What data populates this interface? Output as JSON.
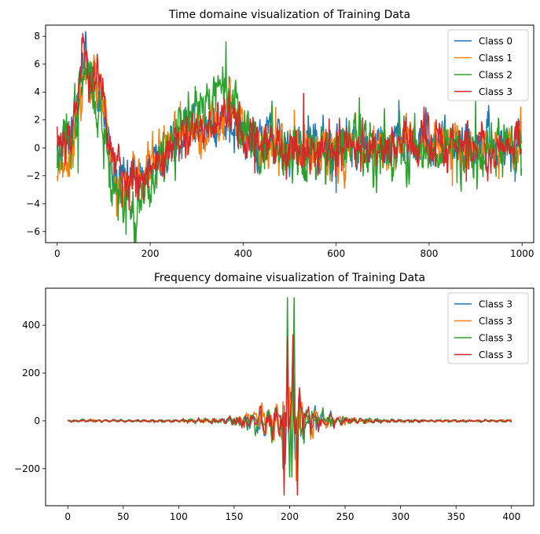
{
  "chart_data": [
    {
      "type": "line",
      "title": "Time domaine visualization of Training Data",
      "xlabel": "",
      "ylabel": "",
      "xlim": [
        -25,
        1025
      ],
      "ylim": [
        -6.8,
        8.8
      ],
      "xticks": [
        0,
        200,
        400,
        600,
        800,
        1000
      ],
      "yticks": [
        -6,
        -4,
        -2,
        0,
        2,
        4,
        6,
        8
      ],
      "xtick_labels": [
        "0",
        "200",
        "400",
        "600",
        "800",
        "1000"
      ],
      "ytick_labels": [
        "−6",
        "−4",
        "−2",
        "0",
        "2",
        "4",
        "6",
        "8"
      ],
      "legend_position": "top-right",
      "num_points": 1000,
      "series": [
        {
          "name": "Class 0",
          "color": "#1f77b4",
          "seed": 11,
          "noise": 1.0,
          "anchors": [
            [
              0,
              0
            ],
            [
              30,
              1
            ],
            [
              50,
              4.5
            ],
            [
              60,
              6.2
            ],
            [
              80,
              4.8
            ],
            [
              100,
              2.5
            ],
            [
              120,
              -1.5
            ],
            [
              150,
              -2.5
            ],
            [
              200,
              -1.5
            ],
            [
              250,
              0
            ],
            [
              300,
              1.8
            ],
            [
              330,
              1.0
            ],
            [
              370,
              2.2
            ],
            [
              400,
              1.2
            ],
            [
              450,
              0.3
            ],
            [
              600,
              0.2
            ],
            [
              800,
              0.5
            ],
            [
              1000,
              0.3
            ]
          ],
          "spikes": [
            [
              55,
              6.8
            ],
            [
              370,
              5.1
            ],
            [
              540,
              2.3
            ],
            [
              600,
              -3.2
            ],
            [
              735,
              3.4
            ],
            [
              985,
              -2.4
            ]
          ]
        },
        {
          "name": "Class 1",
          "color": "#ff7f0e",
          "seed": 23,
          "noise": 1.0,
          "anchors": [
            [
              0,
              -1.2
            ],
            [
              30,
              -0.3
            ],
            [
              50,
              3.5
            ],
            [
              60,
              5.6
            ],
            [
              80,
              4.8
            ],
            [
              100,
              2.5
            ],
            [
              120,
              -2.5
            ],
            [
              140,
              -3.5
            ],
            [
              200,
              -1.2
            ],
            [
              250,
              0.5
            ],
            [
              300,
              1.5
            ],
            [
              350,
              1.8
            ],
            [
              370,
              3.5
            ],
            [
              400,
              1.5
            ],
            [
              450,
              0
            ],
            [
              600,
              -0.3
            ],
            [
              800,
              0.1
            ],
            [
              1000,
              -0.2
            ]
          ],
          "spikes": [
            [
              12,
              -2.1
            ],
            [
              128,
              -4.9
            ],
            [
              265,
              3.3
            ],
            [
              372,
              5.0
            ],
            [
              470,
              2.9
            ],
            [
              510,
              2.7
            ],
            [
              850,
              -2.7
            ],
            [
              950,
              -2.2
            ]
          ]
        },
        {
          "name": "Class 2",
          "color": "#2ca02c",
          "seed": 37,
          "noise": 1.2,
          "anchors": [
            [
              0,
              -0.5
            ],
            [
              30,
              1
            ],
            [
              50,
              4.0
            ],
            [
              60,
              5.5
            ],
            [
              80,
              3.8
            ],
            [
              100,
              1.5
            ],
            [
              120,
              -2.5
            ],
            [
              150,
              -4.0
            ],
            [
              170,
              -4.5
            ],
            [
              200,
              -2.5
            ],
            [
              250,
              0.5
            ],
            [
              300,
              2.5
            ],
            [
              330,
              3.0
            ],
            [
              360,
              4.5
            ],
            [
              400,
              1.5
            ],
            [
              450,
              0
            ],
            [
              600,
              0
            ],
            [
              800,
              0
            ],
            [
              1000,
              0
            ]
          ],
          "spikes": [
            [
              45,
              -1.8
            ],
            [
              100,
              -1.5
            ],
            [
              148,
              -6.2
            ],
            [
              340,
              4.7
            ],
            [
              363,
              7.6
            ],
            [
              650,
              3.6
            ],
            [
              720,
              -2.4
            ],
            [
              860,
              -2.5
            ],
            [
              900,
              3.4
            ]
          ]
        },
        {
          "name": "Class 3",
          "color": "#d62728",
          "seed": 53,
          "noise": 1.0,
          "anchors": [
            [
              0,
              0.5
            ],
            [
              30,
              1.2
            ],
            [
              50,
              5.0
            ],
            [
              55,
              7.0
            ],
            [
              70,
              5.5
            ],
            [
              90,
              4.5
            ],
            [
              100,
              3.5
            ],
            [
              120,
              -1.0
            ],
            [
              150,
              -2.2
            ],
            [
              200,
              -1.5
            ],
            [
              250,
              0
            ],
            [
              300,
              1.0
            ],
            [
              350,
              1.5
            ],
            [
              370,
              2.8
            ],
            [
              400,
              1.0
            ],
            [
              450,
              0
            ],
            [
              600,
              0
            ],
            [
              800,
              0.3
            ],
            [
              1000,
              0
            ]
          ],
          "spikes": [
            [
              55,
              8.2
            ],
            [
              62,
              7.0
            ],
            [
              140,
              -4.2
            ],
            [
              425,
              -1.8
            ],
            [
              530,
              3.9
            ],
            [
              880,
              -2.4
            ],
            [
              1000,
              -2.6
            ]
          ]
        }
      ]
    },
    {
      "type": "line",
      "title": "Frequency domaine visualization of Training Data",
      "xlabel": "",
      "ylabel": "",
      "xlim": [
        -20,
        420
      ],
      "ylim": [
        -355,
        555
      ],
      "xticks": [
        0,
        50,
        100,
        150,
        200,
        250,
        300,
        350,
        400
      ],
      "yticks": [
        -200,
        0,
        200,
        400
      ],
      "xtick_labels": [
        "0",
        "50",
        "100",
        "150",
        "200",
        "250",
        "300",
        "350",
        "400"
      ],
      "ytick_labels": [
        "−200",
        "0",
        "200",
        "400"
      ],
      "legend_position": "top-right",
      "num_points": 401,
      "series": [
        {
          "name": "Class 3",
          "color": "#1f77b4",
          "seed": 71,
          "scale": 0.85,
          "peaks": [
            [
              196,
              -180
            ],
            [
              198,
              360
            ],
            [
              201,
              120
            ],
            [
              203,
              340
            ],
            [
              205,
              -160
            ]
          ]
        },
        {
          "name": "Class 3",
          "color": "#ff7f0e",
          "seed": 83,
          "scale": 0.9,
          "peaks": [
            [
              195,
              -240
            ],
            [
              198,
              300
            ],
            [
              200,
              140
            ],
            [
              203,
              320
            ],
            [
              206,
              -250
            ]
          ]
        },
        {
          "name": "Class 3",
          "color": "#2ca02c",
          "seed": 97,
          "scale": 1.0,
          "peaks": [
            [
              194,
              -200
            ],
            [
              198,
              515
            ],
            [
              200,
              -235
            ],
            [
              202,
              -235
            ],
            [
              204,
              515
            ],
            [
              207,
              -220
            ]
          ]
        },
        {
          "name": "Class 3",
          "color": "#d62728",
          "seed": 109,
          "scale": 0.95,
          "peaks": [
            [
              195,
              -310
            ],
            [
              198,
              350
            ],
            [
              200,
              0
            ],
            [
              203,
              360
            ],
            [
              207,
              -310
            ]
          ]
        }
      ]
    }
  ]
}
